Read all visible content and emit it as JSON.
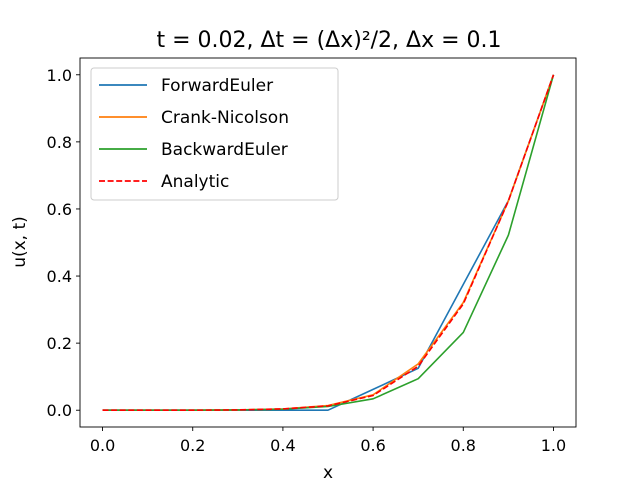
{
  "chart_data": {
    "type": "line",
    "title": "t = 0.02, Δt = (Δx)²/2, Δx = 0.1",
    "xlabel": "x",
    "ylabel": "u(x, t)",
    "xlim": [
      -0.05,
      1.05
    ],
    "ylim": [
      -0.05,
      1.05
    ],
    "xticks": [
      0.0,
      0.2,
      0.4,
      0.6,
      0.8,
      1.0
    ],
    "yticks": [
      0.0,
      0.2,
      0.4,
      0.6,
      0.8,
      1.0
    ],
    "xtick_labels": [
      "0.0",
      "0.2",
      "0.4",
      "0.6",
      "0.8",
      "1.0"
    ],
    "ytick_labels": [
      "0.0",
      "0.2",
      "0.4",
      "0.6",
      "0.8",
      "1.0"
    ],
    "grid": false,
    "legend_position": "top-left",
    "x": [
      0.0,
      0.1,
      0.2,
      0.3,
      0.4,
      0.5,
      0.6,
      0.7,
      0.8,
      0.9,
      1.0
    ],
    "series": [
      {
        "name": "ForwardEuler",
        "color": "#1f77b4",
        "dash": "solid",
        "values": [
          0.0,
          0.0,
          0.0,
          0.0,
          0.0,
          0.0,
          0.062,
          0.125,
          0.375,
          0.625,
          1.0
        ]
      },
      {
        "name": "Crank-Nicolson",
        "color": "#ff7f0e",
        "dash": "solid",
        "values": [
          0.0,
          0.0,
          0.0,
          0.001,
          0.004,
          0.014,
          0.046,
          0.138,
          0.321,
          0.624,
          1.0
        ]
      },
      {
        "name": "BackwardEuler",
        "color": "#2ca02c",
        "dash": "solid",
        "values": [
          0.0,
          0.0,
          0.0,
          0.001,
          0.003,
          0.011,
          0.034,
          0.094,
          0.232,
          0.522,
          1.0
        ]
      },
      {
        "name": "Analytic",
        "color": "#ff0000",
        "dash": "dashed",
        "values": [
          0.0,
          0.0,
          0.0,
          0.001,
          0.004,
          0.013,
          0.044,
          0.131,
          0.317,
          0.624,
          1.0
        ]
      }
    ]
  }
}
